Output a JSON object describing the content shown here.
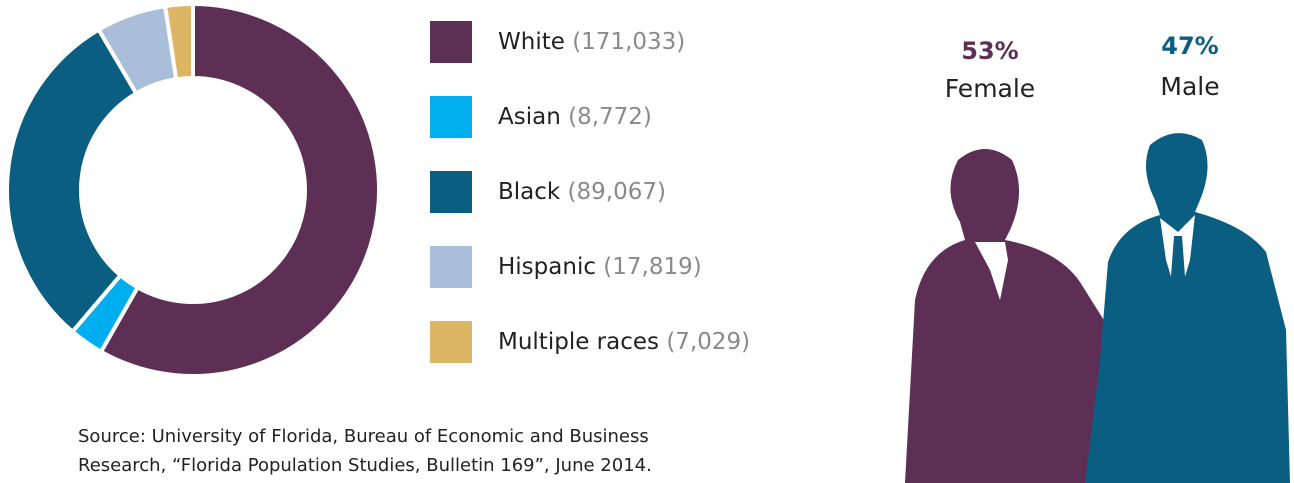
{
  "chart_data": [
    {
      "type": "donut",
      "categories": [
        "White",
        "Asian",
        "Black",
        "Hispanic",
        "Multiple races"
      ],
      "values": [
        171033,
        8772,
        89067,
        17819,
        7029
      ],
      "value_labels": [
        "(171,033)",
        "(8,772)",
        "(89,067)",
        "(17,819)",
        "(7,029)"
      ],
      "colors": [
        "#5e2f55",
        "#00aeef",
        "#0a5e82",
        "#a8bed9",
        "#dcb565"
      ],
      "source": [
        "Source: University of Florida, Bureau of Economic and Business",
        "Research, “Florida Population Studies, Bulletin 169”, June 2014."
      ]
    },
    {
      "type": "pictograph",
      "categories": [
        "Female",
        "Male"
      ],
      "values": [
        53,
        47
      ],
      "value_labels": [
        "53%",
        "47%"
      ],
      "colors": [
        "#5e2f55",
        "#0a5e82"
      ]
    }
  ]
}
